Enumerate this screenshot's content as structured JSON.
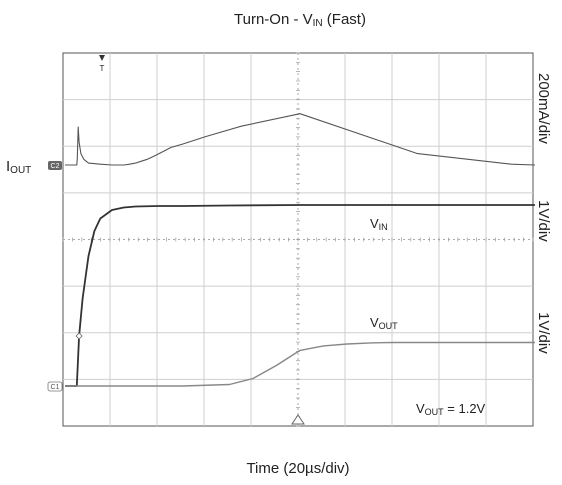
{
  "chart_data": {
    "type": "line",
    "title": {
      "main": "Turn-On - V",
      "sub": "IN",
      "tail": " (Fast)"
    },
    "xlabel": "Time (20µs/div)",
    "x_divisions": 10,
    "y_divisions": 8,
    "grid": true,
    "trigger_marker": "T",
    "channel_markers": [
      "C2",
      "C1"
    ],
    "scale_labels": [
      "200mA/div",
      "1V/div",
      "1V/div"
    ],
    "annotation": {
      "main": "V",
      "sub": "OUT",
      "tail": " = 1.2V"
    },
    "series": [
      {
        "name": "IOUT",
        "label_main": "I",
        "label_sub": "OUT",
        "colors": "#555555",
        "x": [
          0.0,
          1.0,
          1.05,
          1.12,
          1.2,
          1.35,
          1.6,
          2.0,
          3.0,
          4.0,
          5.0,
          5.5,
          6.0,
          6.5,
          7.0,
          7.5,
          8.0,
          8.5,
          9.0,
          10.0,
          12.0,
          15.0,
          20.0,
          30.0,
          38.0,
          40.0
        ],
        "y": [
          0.0,
          0.0,
          0.18,
          1.0,
          0.6,
          0.3,
          0.15,
          0.05,
          0.02,
          0.0,
          0.0,
          0.02,
          0.05,
          0.1,
          0.15,
          0.22,
          0.3,
          0.38,
          0.46,
          0.55,
          0.75,
          1.02,
          1.35,
          0.3,
          0.02,
          0.0
        ]
      },
      {
        "name": "VIN",
        "label_main": "V",
        "label_sub": "IN",
        "colors": "#333333",
        "x": [
          0.0,
          1.0,
          1.2,
          1.5,
          2.0,
          2.5,
          3.0,
          4.0,
          5.0,
          6.0,
          8.0,
          10.0,
          14.0,
          20.0,
          30.0,
          40.0
        ],
        "y": [
          0.0,
          0.0,
          1.0,
          1.75,
          2.6,
          3.1,
          3.35,
          3.52,
          3.57,
          3.59,
          3.6,
          3.6,
          3.61,
          3.62,
          3.62,
          3.62
        ]
      },
      {
        "name": "VOUT",
        "label_main": "V",
        "label_sub": "OUT",
        "colors": "#888888",
        "x": [
          0.0,
          10.0,
          14.0,
          16.0,
          18.0,
          20.0,
          22.0,
          24.0,
          26.0,
          28.0,
          30.0,
          40.0
        ],
        "y": [
          0.0,
          0.0,
          0.04,
          0.2,
          0.55,
          0.95,
          1.07,
          1.12,
          1.15,
          1.16,
          1.16,
          1.16
        ]
      }
    ]
  }
}
